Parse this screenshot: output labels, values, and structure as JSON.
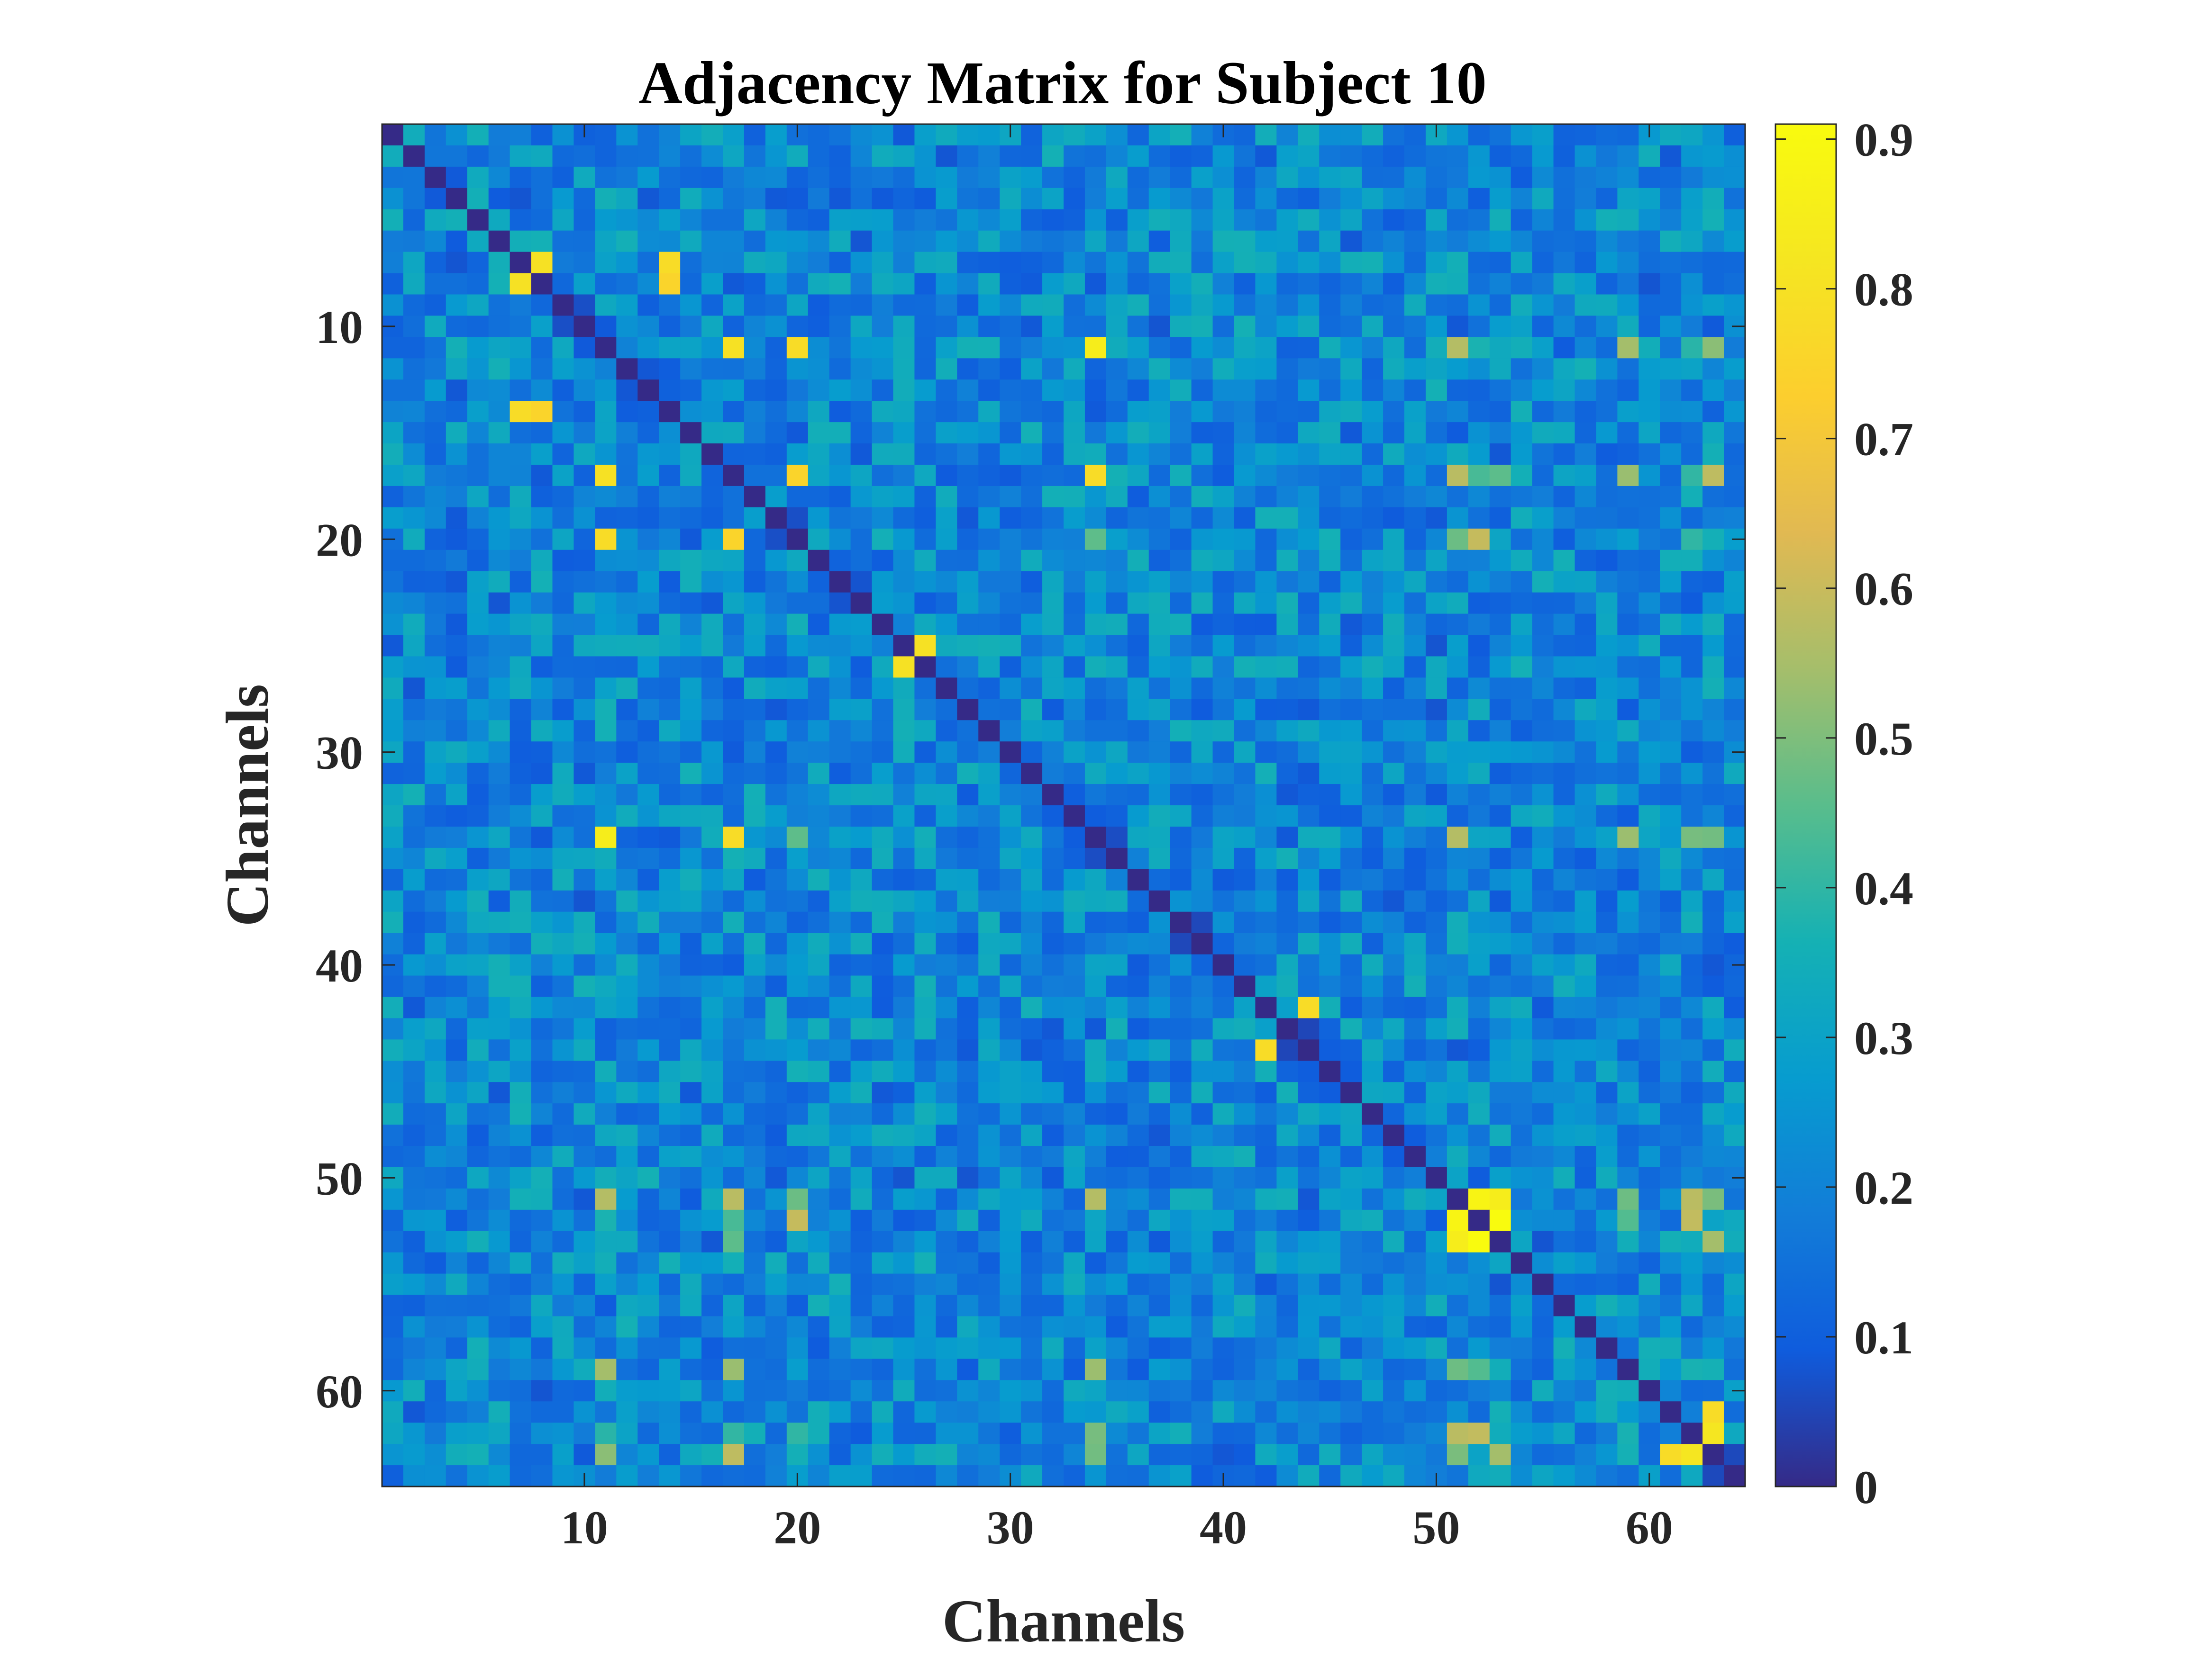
{
  "chart_data": {
    "type": "heatmap",
    "title": "Adjacency Matrix for Subject 10",
    "xlabel": "Channels",
    "ylabel": "Channels",
    "n_channels": 64,
    "x_ticks": [
      10,
      20,
      30,
      40,
      50,
      60
    ],
    "y_ticks": [
      10,
      20,
      30,
      40,
      50,
      60
    ],
    "colorbar": {
      "colormap": "parula",
      "clim": [
        0,
        0.91
      ],
      "ticks": [
        0,
        0.1,
        0.2,
        0.3,
        0.4,
        0.5,
        0.6,
        0.7,
        0.8,
        0.9
      ],
      "tick_labels": [
        "0",
        "0.1",
        "0.2",
        "0.3",
        "0.4",
        "0.5",
        "0.6",
        "0.7",
        "0.8",
        "0.9"
      ]
    },
    "diagonal_value": 0,
    "hub_channels": [
      {
        "channel": 11,
        "strength": 0.72
      },
      {
        "channel": 17,
        "strength": 0.7
      },
      {
        "channel": 20,
        "strength": 0.72
      },
      {
        "channel": 34,
        "strength": 0.68
      },
      {
        "channel": 51,
        "strength": 0.85
      },
      {
        "channel": 52,
        "strength": 0.9
      },
      {
        "channel": 53,
        "strength": 0.85
      },
      {
        "channel": 59,
        "strength": 0.65
      },
      {
        "channel": 62,
        "strength": 0.7
      },
      {
        "channel": 63,
        "strength": 0.7
      }
    ],
    "strong_pairs": [
      [
        7,
        8,
        0.8
      ],
      [
        7,
        14,
        0.78
      ],
      [
        8,
        14,
        0.75
      ],
      [
        11,
        17,
        0.8
      ],
      [
        11,
        20,
        0.78
      ],
      [
        11,
        34,
        0.85
      ],
      [
        17,
        20,
        0.75
      ],
      [
        25,
        26,
        0.8
      ],
      [
        17,
        34,
        0.78
      ],
      [
        42,
        44,
        0.78
      ],
      [
        52,
        53,
        0.91
      ],
      [
        51,
        52,
        0.88
      ],
      [
        51,
        53,
        0.85
      ],
      [
        62,
        63,
        0.82
      ],
      [
        61,
        63,
        0.78
      ]
    ]
  }
}
